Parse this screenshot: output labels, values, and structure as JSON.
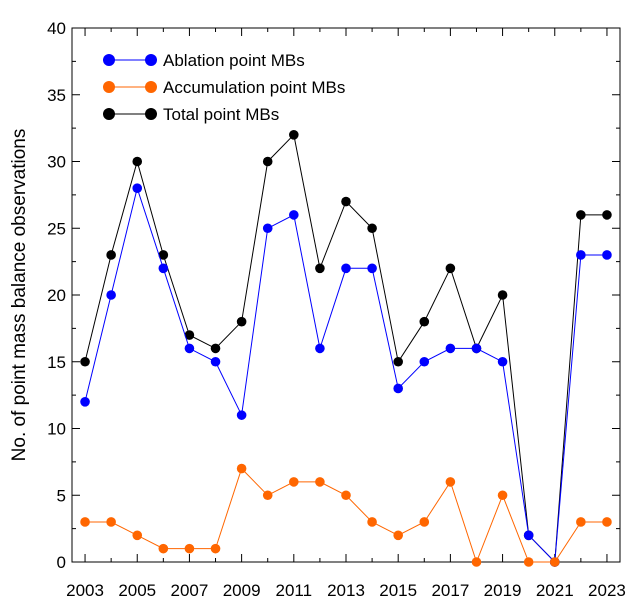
{
  "chart_data": {
    "type": "line",
    "title": "",
    "xlabel": "",
    "ylabel": "No. of point mass balance observations",
    "x": [
      2003,
      2004,
      2005,
      2006,
      2007,
      2008,
      2009,
      2010,
      2011,
      2012,
      2013,
      2014,
      2015,
      2016,
      2017,
      2018,
      2019,
      2020,
      2021,
      2022,
      2023
    ],
    "x_tick_labels": [
      "2003",
      "2005",
      "2007",
      "2009",
      "2011",
      "2013",
      "2015",
      "2017",
      "2019",
      "2021",
      "2023"
    ],
    "xlim": [
      2003,
      2023
    ],
    "ylim": [
      0,
      40
    ],
    "y_ticks": [
      0,
      5,
      10,
      15,
      20,
      25,
      30,
      35,
      40
    ],
    "grid": false,
    "legend_position": "top-left",
    "series": [
      {
        "name": "Ablation point MBs",
        "color": "#0000ff",
        "values": [
          12,
          20,
          28,
          22,
          16,
          15,
          11,
          25,
          26,
          16,
          22,
          22,
          13,
          15,
          16,
          16,
          15,
          2,
          0,
          23,
          23
        ]
      },
      {
        "name": "Accumulation point MBs",
        "color": "#ff6600",
        "values": [
          3,
          3,
          2,
          1,
          1,
          1,
          7,
          5,
          6,
          6,
          5,
          3,
          2,
          3,
          6,
          0,
          5,
          0,
          0,
          3,
          3
        ]
      },
      {
        "name": "Total point MBs",
        "color": "#000000",
        "values": [
          15,
          23,
          30,
          23,
          17,
          16,
          18,
          30,
          32,
          22,
          27,
          25,
          15,
          18,
          22,
          16,
          20,
          2,
          0,
          26,
          26
        ]
      }
    ]
  }
}
